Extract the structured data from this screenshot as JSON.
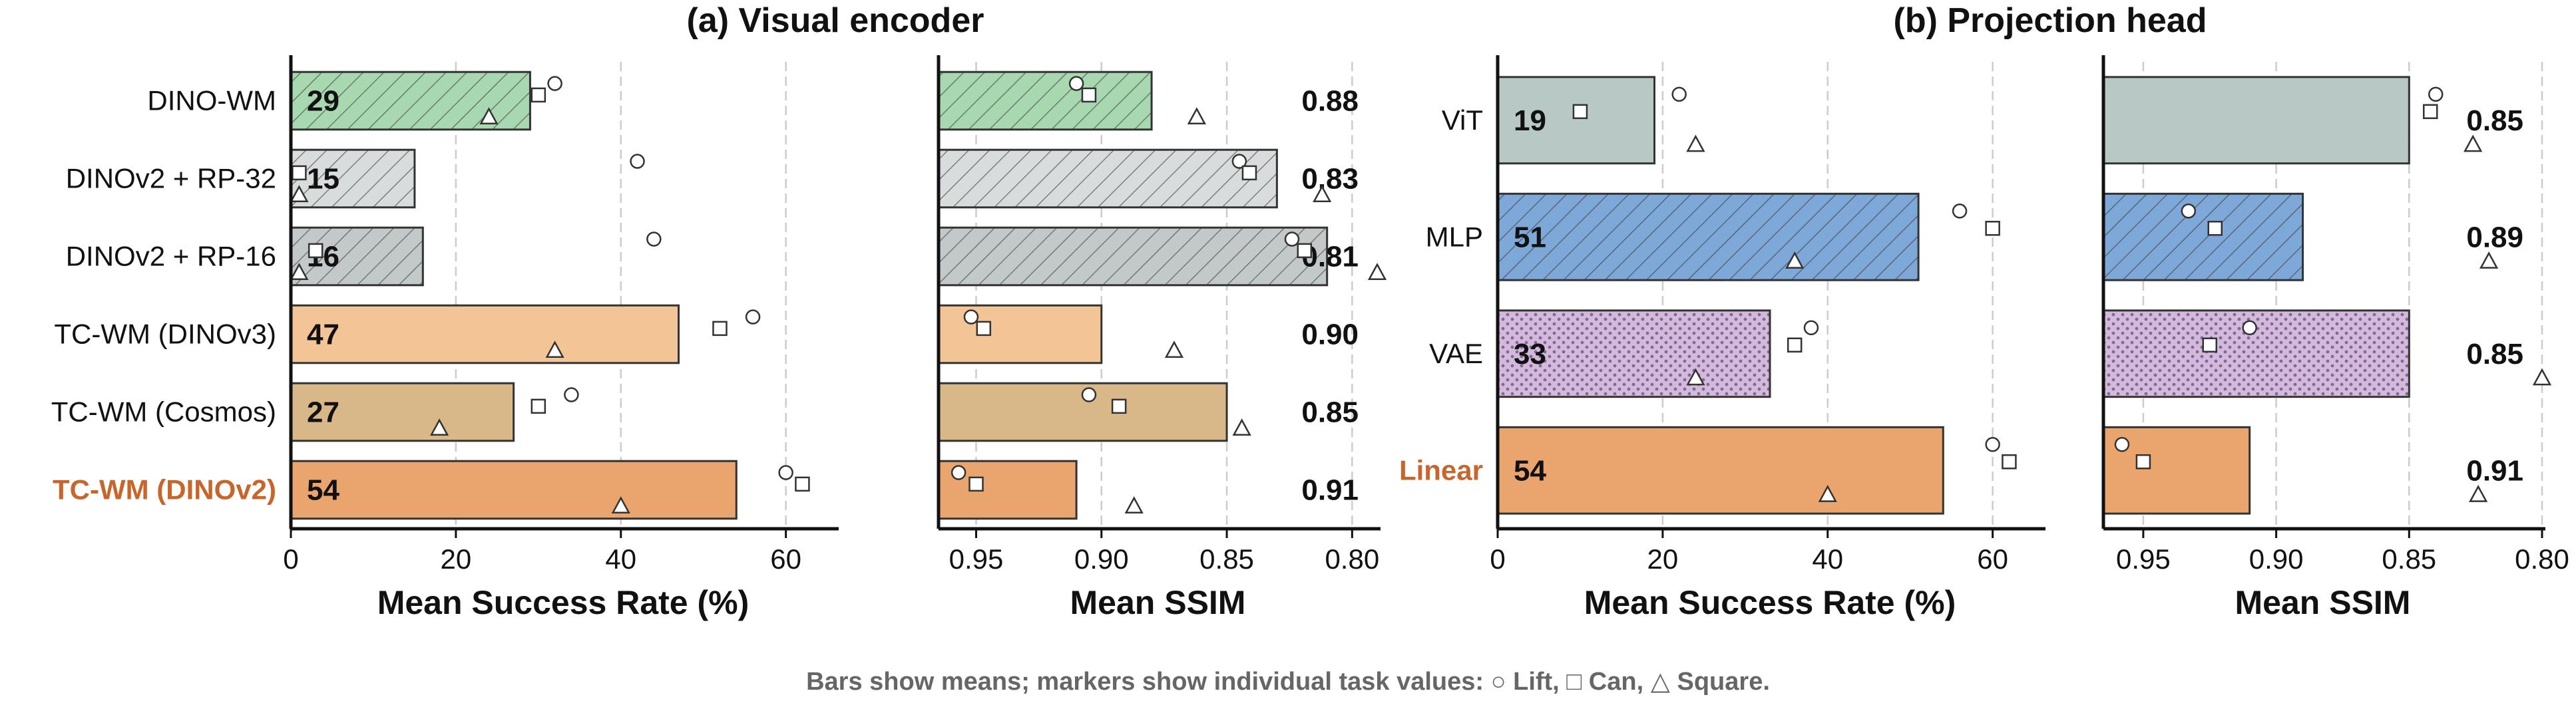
{
  "caption": "Bars show means; markers show individual task values: ○ Lift, □ Can, △ Square.",
  "colors": {
    "green": "#a8d8b0",
    "gray_light": "#d8dcdc",
    "gray_mid": "#c3c9c9",
    "peach": "#f3c596",
    "tan": "#d8b888",
    "orange": "#eaa56f",
    "sage": "#b8c8c4",
    "blue": "#7ea8d8",
    "lilac": "#d4b8e0",
    "highlight_label": "#c8652a",
    "grid": "#cccccc",
    "edge": "#333333"
  },
  "chart_data": [
    {
      "id": "a_success",
      "type": "bar",
      "orientation": "horizontal",
      "title": "(a) Visual encoder",
      "xlabel": "Mean Success Rate (%)",
      "xlim": [
        0,
        66
      ],
      "xticks": [
        "0",
        "20",
        "40",
        "60"
      ],
      "xtick_values": [
        0,
        20,
        40,
        60
      ],
      "grid": true,
      "categories": [
        "DINO-WM",
        "DINOv2 + RP-32",
        "DINOv2 + RP-16",
        "TC-WM (DINOv3)",
        "TC-WM (Cosmos)",
        "TC-WM (DINOv2)"
      ],
      "highlight_category": "TC-WM (DINOv2)",
      "values": [
        29,
        15,
        16,
        47,
        27,
        54
      ],
      "value_labels": [
        "29",
        "15",
        "16",
        "47",
        "27",
        "54"
      ],
      "fills": [
        "green",
        "gray_light",
        "gray_mid",
        "peach",
        "tan",
        "orange"
      ],
      "hatches": [
        "diag",
        "diag",
        "diag",
        "none",
        "none",
        "none"
      ],
      "markers": {
        "Lift": [
          32,
          42,
          44,
          56,
          34,
          60
        ],
        "Can": [
          30,
          1,
          3,
          52,
          30,
          62
        ],
        "Square": [
          24,
          1,
          1,
          32,
          18,
          40
        ]
      }
    },
    {
      "id": "a_ssim",
      "type": "bar",
      "orientation": "horizontal",
      "xlabel": "Mean SSIM",
      "xlim": [
        0.965,
        0.79
      ],
      "reversed": true,
      "xticks": [
        "0.95",
        "0.90",
        "0.85",
        "0.80"
      ],
      "xtick_values": [
        0.95,
        0.9,
        0.85,
        0.8
      ],
      "grid": true,
      "categories": [
        "DINO-WM",
        "DINOv2 + RP-32",
        "DINOv2 + RP-16",
        "TC-WM (DINOv3)",
        "TC-WM (Cosmos)",
        "TC-WM (DINOv2)"
      ],
      "values": [
        0.88,
        0.83,
        0.81,
        0.9,
        0.85,
        0.91
      ],
      "value_labels": [
        "0.88",
        "0.83",
        "0.81",
        "0.90",
        "0.85",
        "0.91"
      ],
      "fills": [
        "green",
        "gray_light",
        "gray_mid",
        "peach",
        "tan",
        "orange"
      ],
      "hatches": [
        "diag",
        "diag",
        "diag",
        "none",
        "none",
        "none"
      ],
      "markers": {
        "Lift": [
          0.91,
          0.845,
          0.824,
          0.952,
          0.905,
          0.957
        ],
        "Can": [
          0.905,
          0.841,
          0.819,
          0.947,
          0.893,
          0.95
        ],
        "Square": [
          0.862,
          0.812,
          0.79,
          0.871,
          0.844,
          0.887
        ]
      }
    },
    {
      "id": "b_success",
      "type": "bar",
      "orientation": "horizontal",
      "title": "(b) Projection head",
      "xlabel": "Mean Success Rate (%)",
      "xlim": [
        0,
        66
      ],
      "xticks": [
        "0",
        "20",
        "40",
        "60"
      ],
      "xtick_values": [
        0,
        20,
        40,
        60
      ],
      "grid": true,
      "categories": [
        "ViT",
        "MLP",
        "VAE",
        "Linear"
      ],
      "highlight_category": "Linear",
      "values": [
        19,
        51,
        33,
        54
      ],
      "value_labels": [
        "19",
        "51",
        "33",
        "54"
      ],
      "fills": [
        "sage",
        "blue",
        "lilac",
        "orange"
      ],
      "hatches": [
        "none",
        "diag",
        "dots",
        "none"
      ],
      "markers": {
        "Lift": [
          22,
          56,
          38,
          60
        ],
        "Can": [
          10,
          60,
          36,
          62
        ],
        "Square": [
          24,
          36,
          24,
          40
        ]
      }
    },
    {
      "id": "b_ssim",
      "type": "bar",
      "orientation": "horizontal",
      "xlabel": "Mean SSIM",
      "xlim": [
        0.965,
        0.8
      ],
      "reversed": true,
      "xticks": [
        "0.95",
        "0.90",
        "0.85",
        "0.80"
      ],
      "xtick_values": [
        0.95,
        0.9,
        0.85,
        0.8
      ],
      "grid": true,
      "categories": [
        "ViT",
        "MLP",
        "VAE",
        "Linear"
      ],
      "values": [
        0.85,
        0.89,
        0.85,
        0.91
      ],
      "value_labels": [
        "0.85",
        "0.89",
        "0.85",
        "0.91"
      ],
      "fills": [
        "sage",
        "blue",
        "lilac",
        "orange"
      ],
      "hatches": [
        "none",
        "diag",
        "dots",
        "none"
      ],
      "markers": {
        "Lift": [
          0.84,
          0.933,
          0.91,
          0.958
        ],
        "Can": [
          0.842,
          0.923,
          0.925,
          0.95
        ],
        "Square": [
          0.826,
          0.82,
          0.8,
          0.824
        ]
      }
    }
  ]
}
